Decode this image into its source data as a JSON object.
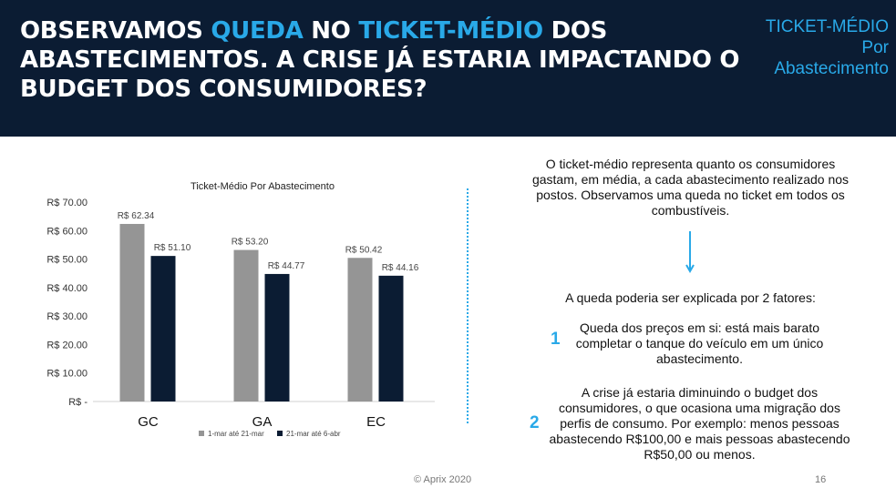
{
  "header": {
    "headline": {
      "part1": "OBSERVAMOS ",
      "highlight1": "QUEDA",
      "part2": " NO ",
      "highlight2": "TICKET-MÉDIO",
      "part3": " DOS ABASTECIMENTOS. A CRISE JÁ ESTARIA IMPACTANDO O BUDGET DOS CONSUMIDORES?"
    },
    "tag_lines": [
      "TICKET-MÉDIO",
      "Por",
      "Abastecimento"
    ]
  },
  "colors": {
    "header_bg": "#0b1c33",
    "accent": "#29a9e8",
    "series1": "#959595",
    "series2": "#0b1c33"
  },
  "chart_data": {
    "type": "bar",
    "title": "Ticket-Médio Por Abastecimento",
    "categories": [
      "GC",
      "GA",
      "EC"
    ],
    "series": [
      {
        "name": "1-mar até 21-mar",
        "values": [
          62.34,
          53.2,
          50.42
        ],
        "labels": [
          "R$ 62.34",
          "R$ 53.20",
          "R$ 50.42"
        ]
      },
      {
        "name": "21-mar até 6-abr",
        "values": [
          51.1,
          44.77,
          44.16
        ],
        "labels": [
          "R$ 51.10",
          "R$ 44.77",
          "R$ 44.16"
        ]
      }
    ],
    "yticks": [
      0,
      10,
      20,
      30,
      40,
      50,
      60,
      70
    ],
    "ytick_labels": [
      "R$ -",
      "R$ 10.00",
      "R$ 20.00",
      "R$ 30.00",
      "R$ 40.00",
      "R$ 50.00",
      "R$ 60.00",
      "R$ 70.00"
    ],
    "ylim": [
      0,
      70
    ],
    "legend_position": "bottom",
    "grid": false
  },
  "text": {
    "intro": "O ticket-médio representa quanto os consumidores gastam, em média, a cada abastecimento realizado nos postos. Observamos uma queda no ticket em todos os combustíveis.",
    "factors_title": "A queda poderia ser explicada por 2 fatores:",
    "factor1_num": "1",
    "factor1": "Queda dos preços em si: está mais barato completar o tanque do veículo em um único abastecimento.",
    "factor2_num": "2",
    "factor2": "A crise já estaria diminuindo o budget dos consumidores, o que ocasiona uma migração dos perfis de consumo. Por exemplo: menos pessoas abastecendo R$100,00 e mais pessoas abastecendo R$50,00 ou menos."
  },
  "footer": {
    "copyright": "© Aprix 2020",
    "page": "16"
  }
}
